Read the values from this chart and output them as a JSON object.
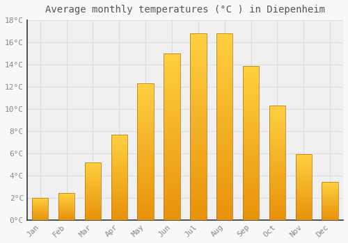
{
  "title": "Average monthly temperatures (°C ) in Diepenheim",
  "months": [
    "Jan",
    "Feb",
    "Mar",
    "Apr",
    "May",
    "Jun",
    "Jul",
    "Aug",
    "Sep",
    "Oct",
    "Nov",
    "Dec"
  ],
  "values": [
    2.0,
    2.4,
    5.2,
    7.7,
    12.3,
    15.0,
    16.8,
    16.8,
    13.9,
    10.3,
    5.9,
    3.4
  ],
  "bar_color_bottom": "#E8920A",
  "bar_color_top": "#FFD040",
  "bar_edge_color": "#B07010",
  "ylim": [
    0,
    18
  ],
  "yticks": [
    0,
    2,
    4,
    6,
    8,
    10,
    12,
    14,
    16,
    18
  ],
  "background_color": "#f8f8f8",
  "plot_bg_color": "#f0f0f0",
  "grid_color": "#dddddd",
  "title_fontsize": 10,
  "tick_fontsize": 8,
  "font_family": "monospace",
  "tick_color": "#888888",
  "spine_color": "#333333"
}
